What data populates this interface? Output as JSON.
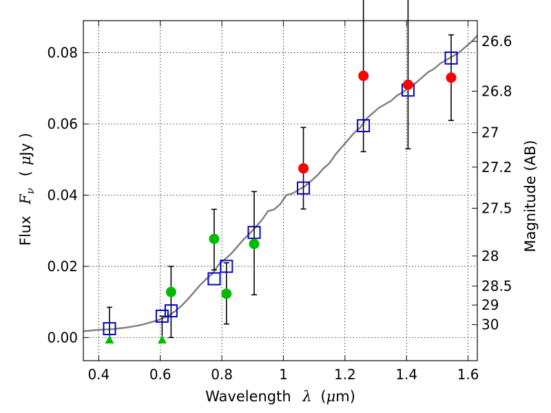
{
  "chart_data": {
    "type": "scatter",
    "xlabel": "Wavelength",
    "xlabel_math": "λ",
    "xlabel_unit_open": "(",
    "xlabel_unit_math": "μ",
    "xlabel_unit_rest": "m)",
    "ylabel": "Flux",
    "ylabel_math": "F",
    "ylabel_math_sub": "ν",
    "ylabel_unit_open": "(",
    "ylabel_unit_math": "μ",
    "ylabel_unit_rest": "Jy )",
    "y2label": "Magnitude (AB)",
    "xlim": [
      0.35,
      1.63
    ],
    "ylim": [
      -0.0065,
      0.089
    ],
    "grid": true,
    "x_ticks": [
      {
        "value": 0.4,
        "label": "0.4"
      },
      {
        "value": 0.6,
        "label": "0.6"
      },
      {
        "value": 0.8,
        "label": "0.8"
      },
      {
        "value": 1.0,
        "label": "1"
      },
      {
        "value": 1.2,
        "label": "1.2"
      },
      {
        "value": 1.4,
        "label": "1.4"
      },
      {
        "value": 1.6,
        "label": "1.6"
      }
    ],
    "y_ticks": [
      {
        "value": 0.0,
        "label": "0.00"
      },
      {
        "value": 0.02,
        "label": "0.02"
      },
      {
        "value": 0.04,
        "label": "0.04"
      },
      {
        "value": 0.06,
        "label": "0.06"
      },
      {
        "value": 0.08,
        "label": "0.08"
      }
    ],
    "y2_ticks": [
      {
        "value": 26.6,
        "label": "26.6"
      },
      {
        "value": 26.8,
        "label": "26.8"
      },
      {
        "value": 27.0,
        "label": "27"
      },
      {
        "value": 27.2,
        "label": "27.2"
      },
      {
        "value": 27.5,
        "label": "27.5"
      },
      {
        "value": 28.0,
        "label": "28"
      },
      {
        "value": 28.5,
        "label": "28.5"
      },
      {
        "value": 29.0,
        "label": "29"
      },
      {
        "value": 30.0,
        "label": "30"
      }
    ],
    "series": [
      {
        "role": "model-spectrum",
        "color": "#808080",
        "x": [
          0.35,
          0.37,
          0.39,
          0.41,
          0.43,
          0.45,
          0.47,
          0.49,
          0.51,
          0.53,
          0.55,
          0.57,
          0.59,
          0.61,
          0.63,
          0.65,
          0.67,
          0.69,
          0.71,
          0.73,
          0.75,
          0.77,
          0.79,
          0.81,
          0.83,
          0.85,
          0.87,
          0.89,
          0.91,
          0.93,
          0.95,
          0.97,
          0.99,
          1.01,
          1.03,
          1.05,
          1.07,
          1.09,
          1.11,
          1.13,
          1.15,
          1.17,
          1.19,
          1.21,
          1.23,
          1.25,
          1.27,
          1.29,
          1.31,
          1.33,
          1.35,
          1.37,
          1.39,
          1.41,
          1.43,
          1.45,
          1.47,
          1.49,
          1.51,
          1.53,
          1.55,
          1.57,
          1.59,
          1.61,
          1.63
        ],
        "y": [
          0.0018,
          0.0019,
          0.0021,
          0.0022,
          0.0023,
          0.0024,
          0.0026,
          0.0028,
          0.0031,
          0.0034,
          0.0038,
          0.0043,
          0.0048,
          0.0055,
          0.0063,
          0.0075,
          0.009,
          0.0108,
          0.0128,
          0.0148,
          0.0165,
          0.018,
          0.0205,
          0.022,
          0.0235,
          0.0255,
          0.0275,
          0.0292,
          0.031,
          0.033,
          0.0355,
          0.036,
          0.0375,
          0.04,
          0.0405,
          0.0415,
          0.0425,
          0.044,
          0.0455,
          0.0475,
          0.049,
          0.0515,
          0.0535,
          0.0555,
          0.0575,
          0.059,
          0.0615,
          0.063,
          0.0645,
          0.0655,
          0.0665,
          0.068,
          0.069,
          0.0705,
          0.0715,
          0.073,
          0.0745,
          0.0755,
          0.077,
          0.078,
          0.079,
          0.08,
          0.0815,
          0.083,
          0.0848
        ]
      },
      {
        "role": "model-photometry",
        "marker": "open-square",
        "color": "#0000cc",
        "x": [
          0.435,
          0.606,
          0.635,
          0.775,
          0.815,
          0.905,
          1.065,
          1.26,
          1.405,
          1.545
        ],
        "y": [
          0.0025,
          0.006,
          0.0075,
          0.0165,
          0.02,
          0.0295,
          0.042,
          0.0595,
          0.0695,
          0.0785
        ]
      },
      {
        "role": "observed-detections",
        "marker": "filled-circle",
        "color": "#ff0000",
        "x": [
          1.065,
          1.26,
          1.405,
          1.545
        ],
        "y": [
          0.0475,
          0.0735,
          0.071,
          0.073
        ],
        "yerr_low": [
          0.0114,
          0.0213,
          0.018,
          0.012
        ],
        "yerr_high": [
          0.0115,
          0.03,
          0.025,
          0.012
        ]
      },
      {
        "role": "observed-weak",
        "marker": "filled-circle",
        "color": "#00bb00",
        "x": [
          0.635,
          0.775,
          0.815,
          0.905
        ],
        "y": [
          0.0128,
          0.0277,
          0.0123,
          0.0263
        ],
        "yerr_low": [
          0.0128,
          0.0087,
          0.0085,
          0.0143
        ],
        "yerr_high": [
          0.0072,
          0.0083,
          0.0087,
          0.0147
        ]
      },
      {
        "role": "observed-upper-limits",
        "marker": "filled-triangle",
        "color": "#00bb00",
        "x": [
          0.435,
          0.606
        ],
        "y": [
          -0.0005,
          -0.0005
        ],
        "yerr_high": [
          0.009,
          0.0065
        ]
      }
    ]
  }
}
